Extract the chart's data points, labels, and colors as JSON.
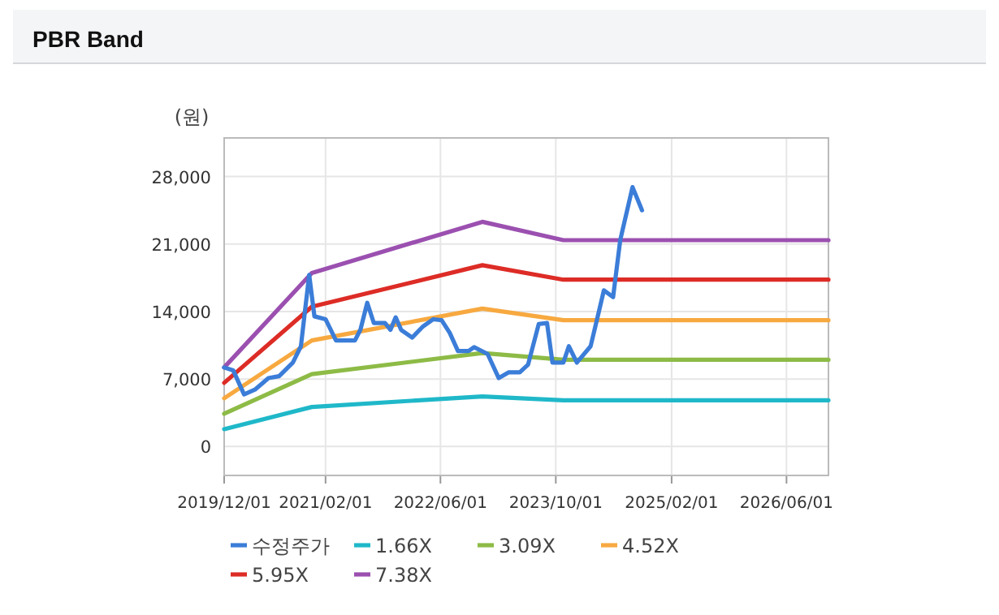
{
  "chart_data": {
    "type": "line",
    "title": "PBR Band",
    "ylabel": "(원)",
    "xlim": [
      "2019-12-01",
      "2026-11-25"
    ],
    "xticks": [
      {
        "value": "2019-12-01",
        "label": "2019/12/01"
      },
      {
        "value": "2021-02-01",
        "label": "2021/02/01"
      },
      {
        "value": "2022-06-01",
        "label": "2022/06/01"
      },
      {
        "value": "2023-10-01",
        "label": "2023/10/01"
      },
      {
        "value": "2025-02-01",
        "label": "2025/02/01"
      },
      {
        "value": "2026-06-01",
        "label": "2026/06/01"
      }
    ],
    "ylim": [
      -3000,
      32000
    ],
    "yticks": [
      0,
      {
        "value": 7000,
        "label": "7,000"
      },
      {
        "value": 14000,
        "label": "14,000"
      },
      {
        "value": 21000,
        "label": "21,000"
      },
      {
        "value": 28000,
        "label": "28,000"
      }
    ],
    "grid": true,
    "legend": "bottom",
    "series": [
      {
        "name": "수정주가",
        "color": "#3b7dd8",
        "x": [
          "2019-12-01",
          "2020-01-08",
          "2020-02-23",
          "2020-04-09",
          "2020-06-05",
          "2020-07-20",
          "2020-09-16",
          "2020-10-20",
          "2020-11-05",
          "2020-11-24",
          "2020-12-16",
          "2021-02-01",
          "2021-03-17",
          "2021-06-05",
          "2021-06-28",
          "2021-07-27",
          "2021-08-24",
          "2021-10-10",
          "2021-11-02",
          "2021-11-24",
          "2021-12-17",
          "2022-02-02",
          "2022-03-17",
          "2022-05-02",
          "2022-06-06",
          "2022-07-10",
          "2022-08-14",
          "2022-09-28",
          "2022-10-21",
          "2022-12-17",
          "2023-02-02",
          "2023-03-17",
          "2023-05-02",
          "2023-06-06",
          "2023-07-21",
          "2023-08-25",
          "2023-09-17",
          "2023-11-02",
          "2023-11-25",
          "2023-12-29",
          "2024-02-25",
          "2024-03-29",
          "2024-04-21",
          "2024-05-30",
          "2024-06-29",
          "2024-08-20",
          "2024-09-29"
        ],
        "values": [
          8200,
          7900,
          5400,
          5900,
          7100,
          7300,
          8700,
          10400,
          13800,
          17800,
          13500,
          13200,
          11000,
          11000,
          12100,
          14900,
          12800,
          12800,
          12100,
          13400,
          12100,
          11300,
          12400,
          13200,
          13100,
          11800,
          9900,
          9900,
          10300,
          9600,
          7100,
          7700,
          7700,
          8500,
          12700,
          12800,
          8700,
          8700,
          10400,
          8700,
          10400,
          13800,
          16200,
          15500,
          21400,
          26900,
          24500
        ]
      },
      {
        "name": "1.66X",
        "color": "#1fb8c9",
        "x": [
          "2019-12-01",
          "2020-12-05",
          "2022-11-25",
          "2023-11-02",
          "2026-11-25"
        ],
        "values": [
          1800,
          4100,
          5200,
          4800,
          4800
        ]
      },
      {
        "name": "3.09X",
        "color": "#8dbb46",
        "x": [
          "2019-12-01",
          "2020-12-05",
          "2022-11-25",
          "2023-11-02",
          "2026-11-25"
        ],
        "values": [
          3400,
          7500,
          9700,
          9000,
          9000
        ]
      },
      {
        "name": "4.52X",
        "color": "#f7a940",
        "x": [
          "2019-12-01",
          "2020-12-05",
          "2022-11-25",
          "2023-11-02",
          "2026-11-25"
        ],
        "values": [
          5000,
          11000,
          14300,
          13100,
          13100
        ]
      },
      {
        "name": "5.95X",
        "color": "#dd2c26",
        "x": [
          "2019-12-01",
          "2020-12-05",
          "2022-11-25",
          "2023-11-02",
          "2026-11-25"
        ],
        "values": [
          6600,
          14500,
          18800,
          17300,
          17300
        ]
      },
      {
        "name": "7.38X",
        "color": "#9b50b0",
        "x": [
          "2019-12-01",
          "2020-12-05",
          "2022-11-25",
          "2023-11-02",
          "2026-11-25"
        ],
        "values": [
          8200,
          18000,
          23300,
          21400,
          21400
        ]
      }
    ]
  }
}
